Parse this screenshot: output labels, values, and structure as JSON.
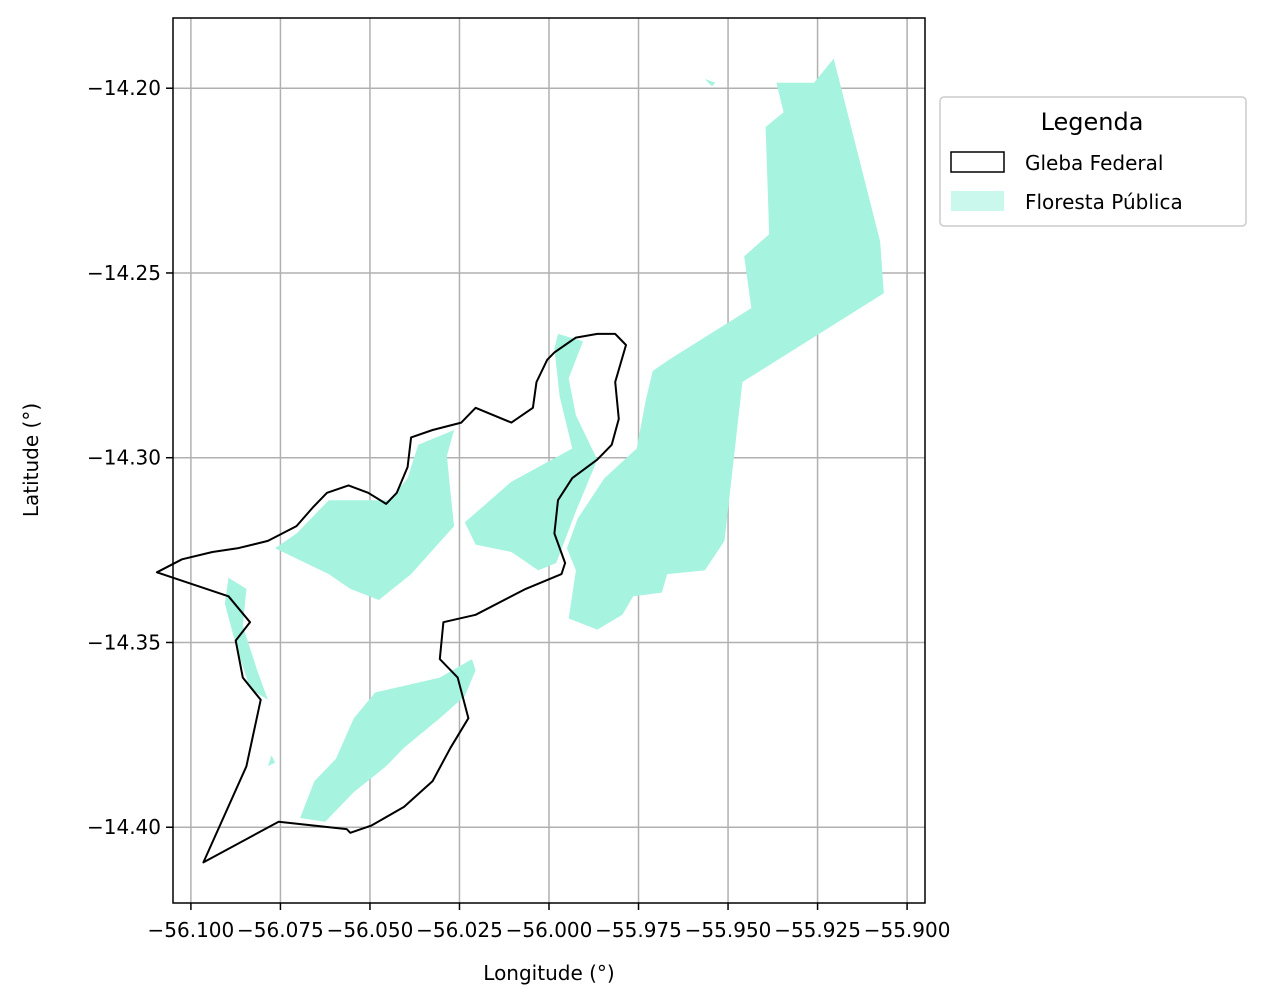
{
  "chart_data": {
    "type": "map",
    "xlabel": "Longitude (°)",
    "ylabel": "Latitude (°)",
    "xlim": [
      -56.105,
      -55.895
    ],
    "ylim": [
      -14.4205,
      -14.181
    ],
    "xticks": [
      -56.1,
      -56.075,
      -56.05,
      -56.025,
      -56.0,
      -55.975,
      -55.95,
      -55.925,
      -55.9
    ],
    "xtick_labels": [
      "−56.100",
      "−56.075",
      "−56.050",
      "−56.025",
      "−56.000",
      "−55.975",
      "−55.950",
      "−55.925",
      "−55.900"
    ],
    "yticks": [
      -14.2,
      -14.25,
      -14.3,
      -14.35,
      -14.4
    ],
    "ytick_labels": [
      "−14.20",
      "−14.25",
      "−14.30",
      "−14.35",
      "−14.40"
    ],
    "grid": true,
    "legend": {
      "title": "Legenda",
      "placement": "outside-upper-right",
      "entries": [
        {
          "label": "Gleba Federal",
          "fill": "#ffffff",
          "edge": "#000000"
        },
        {
          "label": "Floresta Pública",
          "fill": "#a6f3e0",
          "edge": "none"
        }
      ]
    },
    "layers": [
      {
        "name": "Floresta Pública",
        "fill": "#a6f3e0",
        "polygons": [
          [
            [
              -55.9205,
              -14.192
            ],
            [
              -55.9075,
              -14.2415
            ],
            [
              -55.9065,
              -14.2555
            ],
            [
              -55.946,
              -14.2795
            ],
            [
              -55.951,
              -14.3225
            ],
            [
              -55.9565,
              -14.3305
            ],
            [
              -55.967,
              -14.3315
            ],
            [
              -55.9685,
              -14.3365
            ],
            [
              -55.9765,
              -14.3375
            ],
            [
              -55.9795,
              -14.3425
            ],
            [
              -55.9865,
              -14.3465
            ],
            [
              -55.9945,
              -14.3435
            ],
            [
              -55.9925,
              -14.3305
            ],
            [
              -55.995,
              -14.3245
            ],
            [
              -55.992,
              -14.3165
            ],
            [
              -55.9845,
              -14.3055
            ],
            [
              -55.9755,
              -14.2975
            ],
            [
              -55.973,
              -14.2845
            ],
            [
              -55.971,
              -14.2765
            ],
            [
              -55.9665,
              -14.2735
            ],
            [
              -55.9435,
              -14.2595
            ],
            [
              -55.9455,
              -14.2455
            ],
            [
              -55.9385,
              -14.2395
            ],
            [
              -55.9395,
              -14.2105
            ],
            [
              -55.9345,
              -14.2065
            ],
            [
              -55.9365,
              -14.1985
            ],
            [
              -55.926,
              -14.1985
            ]
          ],
          [
            [
              -55.9985,
              -14.2705
            ],
            [
              -55.997,
              -14.2835
            ],
            [
              -55.9935,
              -14.2975
            ],
            [
              -56.0105,
              -14.3065
            ],
            [
              -56.0235,
              -14.3175
            ],
            [
              -56.0205,
              -14.3235
            ],
            [
              -56.0105,
              -14.3255
            ],
            [
              -56.003,
              -14.3305
            ],
            [
              -55.998,
              -14.3285
            ],
            [
              -55.9925,
              -14.3145
            ],
            [
              -55.9865,
              -14.3005
            ],
            [
              -55.9925,
              -14.2885
            ],
            [
              -55.9945,
              -14.2785
            ],
            [
              -55.9905,
              -14.2685
            ],
            [
              -55.9975,
              -14.2665
            ]
          ],
          [
            [
              -56.0765,
              -14.3245
            ],
            [
              -56.0615,
              -14.3315
            ],
            [
              -56.0555,
              -14.3355
            ],
            [
              -56.0475,
              -14.3385
            ],
            [
              -56.0385,
              -14.3315
            ],
            [
              -56.0265,
              -14.3185
            ],
            [
              -56.0275,
              -14.3095
            ],
            [
              -56.0285,
              -14.2995
            ],
            [
              -56.0265,
              -14.2925
            ],
            [
              -56.0365,
              -14.2965
            ],
            [
              -56.0395,
              -14.3055
            ],
            [
              -56.0445,
              -14.3115
            ],
            [
              -56.0525,
              -14.3115
            ],
            [
              -56.0615,
              -14.3115
            ],
            [
              -56.0705,
              -14.3205
            ]
          ],
          [
            [
              -56.0215,
              -14.3545
            ],
            [
              -56.0305,
              -14.3595
            ],
            [
              -56.0485,
              -14.3635
            ],
            [
              -56.0545,
              -14.3705
            ],
            [
              -56.0595,
              -14.3815
            ],
            [
              -56.0655,
              -14.3875
            ],
            [
              -56.0695,
              -14.3975
            ],
            [
              -56.0625,
              -14.3985
            ],
            [
              -56.0545,
              -14.3905
            ],
            [
              -56.0455,
              -14.3835
            ],
            [
              -56.0405,
              -14.3785
            ],
            [
              -56.0305,
              -14.3705
            ],
            [
              -56.0235,
              -14.3645
            ],
            [
              -56.0205,
              -14.3575
            ]
          ],
          [
            [
              -56.0895,
              -14.3325
            ],
            [
              -56.0845,
              -14.3355
            ],
            [
              -56.0855,
              -14.3455
            ],
            [
              -56.0815,
              -14.3575
            ],
            [
              -56.0785,
              -14.3655
            ],
            [
              -56.0835,
              -14.3625
            ],
            [
              -56.0875,
              -14.3505
            ],
            [
              -56.0905,
              -14.3395
            ]
          ],
          [
            [
              -55.9565,
              -14.1975
            ],
            [
              -55.9545,
              -14.1995
            ],
            [
              -55.9535,
              -14.1985
            ]
          ],
          [
            [
              -56.0775,
              -14.3805
            ],
            [
              -56.0785,
              -14.3835
            ],
            [
              -56.0765,
              -14.3825
            ]
          ]
        ]
      },
      {
        "name": "Gleba Federal",
        "fill": "none",
        "stroke": "#000000",
        "polygons": [
          [
            [
              -56.1095,
              -14.331
            ],
            [
              -56.1025,
              -14.3275
            ],
            [
              -56.094,
              -14.3255
            ],
            [
              -56.087,
              -14.3245
            ],
            [
              -56.0785,
              -14.3225
            ],
            [
              -56.0705,
              -14.3185
            ],
            [
              -56.066,
              -14.3135
            ],
            [
              -56.062,
              -14.3095
            ],
            [
              -56.056,
              -14.3075
            ],
            [
              -56.0505,
              -14.3095
            ],
            [
              -56.0455,
              -14.3125
            ],
            [
              -56.0425,
              -14.3095
            ],
            [
              -56.0395,
              -14.3025
            ],
            [
              -56.0385,
              -14.2945
            ],
            [
              -56.0325,
              -14.2925
            ],
            [
              -56.0245,
              -14.2905
            ],
            [
              -56.0205,
              -14.2865
            ],
            [
              -56.0105,
              -14.2905
            ],
            [
              -56.0045,
              -14.2865
            ],
            [
              -56.0035,
              -14.2795
            ],
            [
              -56.0005,
              -14.2735
            ],
            [
              -55.9985,
              -14.2715
            ],
            [
              -55.9955,
              -14.2695
            ],
            [
              -55.9925,
              -14.2675
            ],
            [
              -55.9865,
              -14.2665
            ],
            [
              -55.9815,
              -14.2665
            ],
            [
              -55.9785,
              -14.2695
            ],
            [
              -55.9815,
              -14.2795
            ],
            [
              -55.9805,
              -14.2895
            ],
            [
              -55.9825,
              -14.2965
            ],
            [
              -55.9865,
              -14.3005
            ],
            [
              -55.9935,
              -14.3055
            ],
            [
              -55.9975,
              -14.3115
            ],
            [
              -55.9985,
              -14.3205
            ],
            [
              -55.9955,
              -14.3285
            ],
            [
              -55.9965,
              -14.3315
            ],
            [
              -56.0065,
              -14.3355
            ],
            [
              -56.0205,
              -14.3425
            ],
            [
              -56.0295,
              -14.3445
            ],
            [
              -56.0305,
              -14.3545
            ],
            [
              -56.0255,
              -14.3595
            ],
            [
              -56.0225,
              -14.3705
            ],
            [
              -56.0275,
              -14.3785
            ],
            [
              -56.0325,
              -14.3875
            ],
            [
              -56.0405,
              -14.3945
            ],
            [
              -56.0495,
              -14.3995
            ],
            [
              -56.0555,
              -14.4015
            ],
            [
              -56.0565,
              -14.4005
            ],
            [
              -56.0755,
              -14.3985
            ],
            [
              -56.0965,
              -14.4095
            ],
            [
              -56.0845,
              -14.3835
            ],
            [
              -56.0805,
              -14.3655
            ],
            [
              -56.0855,
              -14.3595
            ],
            [
              -56.0875,
              -14.3495
            ],
            [
              -56.0835,
              -14.3445
            ],
            [
              -56.0895,
              -14.3375
            ]
          ]
        ]
      }
    ]
  }
}
